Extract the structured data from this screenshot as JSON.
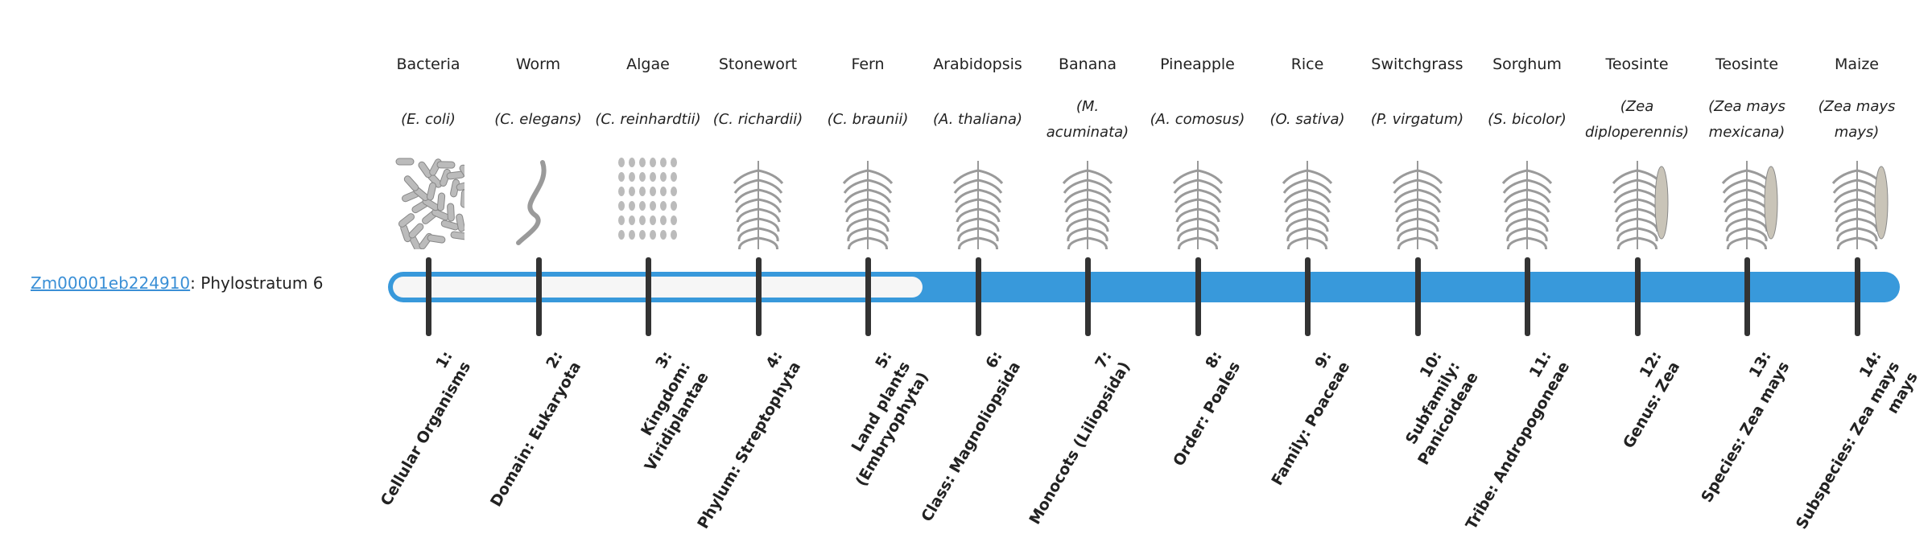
{
  "gene": {
    "id": "Zm00001eb224910",
    "suffix": ": Phylostratum 6"
  },
  "phylostratum": 6,
  "colors": {
    "accent": "#3899db",
    "tick": "#333333",
    "link": "#3a8fd6"
  },
  "organisms": [
    {
      "name": "Bacteria",
      "species": "(E. coli)",
      "icon": "bacteria-icon",
      "stratum": "1:",
      "label": "Cellular Organisms"
    },
    {
      "name": "Worm",
      "species": "(C. elegans)",
      "icon": "worm-icon",
      "stratum": "2:",
      "label": "Domain: Eukaryota"
    },
    {
      "name": "Algae",
      "species": "(C. reinhardtii)",
      "icon": "algae-icon",
      "stratum": "3:",
      "label": "Kingdom: Viridiplantae"
    },
    {
      "name": "Stonewort",
      "species": "(C. richardii)",
      "icon": "stonewort-icon",
      "stratum": "4:",
      "label": "Phylum: Streptophyta"
    },
    {
      "name": "Fern",
      "species": "(C. braunii)",
      "icon": "fern-icon",
      "stratum": "5:",
      "label": "Land plants (Embryophyta)"
    },
    {
      "name": "Arabidopsis",
      "species": "(A. thaliana)",
      "icon": "arabidopsis-icon",
      "stratum": "6:",
      "label": "Class: Magnoliopsida"
    },
    {
      "name": "Banana",
      "species": "(M. acuminata)",
      "icon": "banana-icon",
      "stratum": "7:",
      "label": "Monocots (Liliopsida)"
    },
    {
      "name": "Pineapple",
      "species": "(A. comosus)",
      "icon": "pineapple-icon",
      "stratum": "8:",
      "label": "Order: Poales"
    },
    {
      "name": "Rice",
      "species": "(O. sativa)",
      "icon": "rice-icon",
      "stratum": "9:",
      "label": "Family: Poaceae"
    },
    {
      "name": "Switchgrass",
      "species": "(P. virgatum)",
      "icon": "switchgrass-icon",
      "stratum": "10:",
      "label": "Subfamily: Panicoideae"
    },
    {
      "name": "Sorghum",
      "species": "(S. bicolor)",
      "icon": "sorghum-icon",
      "stratum": "11:",
      "label": "Tribe: Andropogoneae"
    },
    {
      "name": "Teosinte",
      "species": "(Zea diploperennis)",
      "icon": "teosinte-icon",
      "stratum": "12:",
      "label": "Genus: Zea"
    },
    {
      "name": "Teosinte",
      "species": "(Zea mays mexicana)",
      "icon": "teosinte-icon",
      "stratum": "13:",
      "label": "Species: Zea mays"
    },
    {
      "name": "Maize",
      "species": "(Zea mays mays)",
      "icon": "maize-icon",
      "stratum": "14:",
      "label": "Subspecies: Zea mays mays"
    }
  ]
}
